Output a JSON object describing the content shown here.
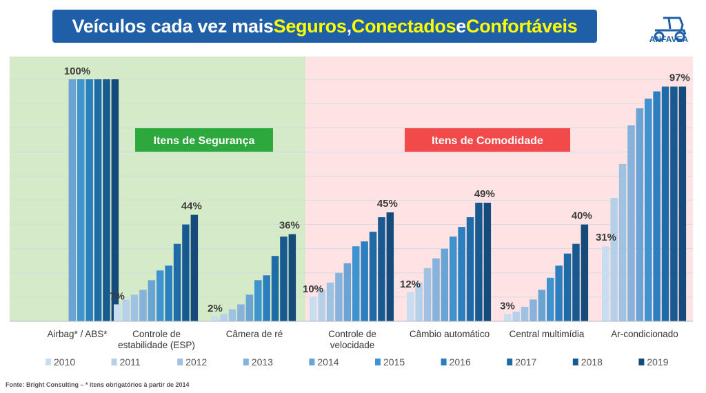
{
  "header": {
    "title_parts": [
      {
        "text": "Veículos cada vez mais ",
        "color": "#ffffff"
      },
      {
        "text": "Seguros",
        "color": "#ffff00"
      },
      {
        "text": ", ",
        "color": "#ffffff"
      },
      {
        "text": "Conectados",
        "color": "#ffff00"
      },
      {
        "text": " e ",
        "color": "#ffffff"
      },
      {
        "text": "Confortáveis",
        "color": "#ffff00"
      }
    ],
    "logo_text": "ANFAVEA",
    "logo_icon": "tractor-icon",
    "logo_color": "#1f5fa8"
  },
  "footer": {
    "source": "Fonte: Bright Consulting – * itens obrigatórios à partir de 2014"
  },
  "chart_data": {
    "type": "bar",
    "categories": [
      "Airbag* / ABS*",
      "Controle de estabilidade (ESP)",
      "Câmera de ré",
      "Controle de velocidade",
      "Câmbio automático",
      "Central multimídia",
      "Ar-condicionado"
    ],
    "category_lines": [
      [
        "Airbag* / ABS*"
      ],
      [
        "Controle de",
        "estabilidade (ESP)"
      ],
      [
        "Câmera de ré"
      ],
      [
        "Controle de",
        "velocidade"
      ],
      [
        "Câmbio automático"
      ],
      [
        "Central multimídia"
      ],
      [
        "Ar-condicionado"
      ]
    ],
    "years": [
      "2010",
      "2011",
      "2012",
      "2013",
      "2014",
      "2015",
      "2016",
      "2017",
      "2018",
      "2019"
    ],
    "series_colors": [
      "#c9ddf0",
      "#b6d0ea",
      "#9fc2e3",
      "#86b2dc",
      "#6aa4d4",
      "#3f93cf",
      "#2b7fbf",
      "#1f6ba7",
      "#185a90",
      "#144b7a"
    ],
    "values": [
      [
        null,
        null,
        null,
        null,
        100,
        100,
        100,
        100,
        100,
        100
      ],
      [
        7,
        9,
        11,
        13,
        17,
        21,
        23,
        32,
        40,
        44
      ],
      [
        2,
        3,
        5,
        7,
        11,
        17,
        19,
        27,
        35,
        36
      ],
      [
        10,
        13,
        16,
        20,
        24,
        31,
        33,
        37,
        43,
        45
      ],
      [
        12,
        16,
        22,
        26,
        30,
        35,
        39,
        43,
        49,
        49
      ],
      [
        3,
        4,
        6,
        9,
        13,
        18,
        23,
        28,
        32,
        40
      ],
      [
        31,
        51,
        65,
        81,
        88,
        92,
        95,
        97,
        97,
        97
      ]
    ],
    "value_labels": [
      {
        "category": 0,
        "text": "100%"
      },
      {
        "category": 1,
        "text": "7%"
      },
      {
        "category": 1,
        "text": "44%"
      },
      {
        "category": 2,
        "text": "2%"
      },
      {
        "category": 2,
        "text": "36%"
      },
      {
        "category": 3,
        "text": "10%"
      },
      {
        "category": 3,
        "text": "45%"
      },
      {
        "category": 4,
        "text": "12%"
      },
      {
        "category": 4,
        "text": "49%"
      },
      {
        "category": 5,
        "text": "3%"
      },
      {
        "category": 5,
        "text": "40%"
      },
      {
        "category": 6,
        "text": "31%"
      },
      {
        "category": 6,
        "text": "97%"
      }
    ],
    "regions": [
      {
        "label": "Itens de Segurança",
        "categories": [
          0,
          1,
          2
        ],
        "bg_color": "#d5ebc8",
        "label_bg": "#2ca83c"
      },
      {
        "label": "Itens de Comodidade",
        "categories": [
          3,
          4,
          5,
          6
        ],
        "bg_color": "#fde3e3",
        "label_bg": "#f24a4a"
      }
    ],
    "ylim": [
      0,
      100
    ],
    "grid": true,
    "legend_position": "bottom"
  }
}
